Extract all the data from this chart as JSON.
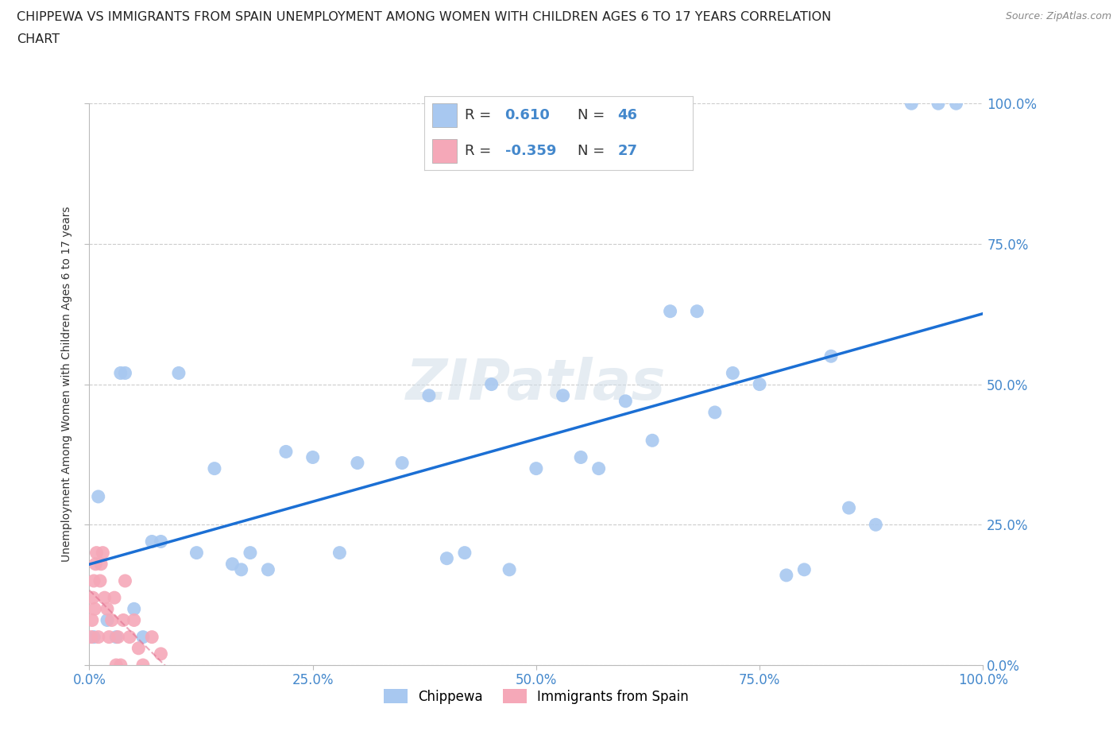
{
  "title_line1": "CHIPPEWA VS IMMIGRANTS FROM SPAIN UNEMPLOYMENT AMONG WOMEN WITH CHILDREN AGES 6 TO 17 YEARS CORRELATION",
  "title_line2": "CHART",
  "source": "Source: ZipAtlas.com",
  "ylabel": "Unemployment Among Women with Children Ages 6 to 17 years",
  "watermark": "ZIPatlas",
  "chippewa_R": 0.61,
  "chippewa_N": 46,
  "spain_R": -0.359,
  "spain_N": 27,
  "chippewa_color": "#a8c8f0",
  "chippewa_line_color": "#1b6fd4",
  "spain_color": "#f5a8b8",
  "spain_line_color": "#e07090",
  "background_color": "#ffffff",
  "grid_color": "#cccccc",
  "tick_color": "#4488cc",
  "chippewa_x": [
    0.5,
    1.0,
    2.0,
    3.0,
    3.5,
    4.0,
    5.0,
    6.0,
    7.0,
    8.0,
    10.0,
    12.0,
    14.0,
    16.0,
    17.0,
    18.0,
    20.0,
    22.0,
    25.0,
    28.0,
    30.0,
    35.0,
    38.0,
    40.0,
    42.0,
    45.0,
    47.0,
    50.0,
    53.0,
    55.0,
    57.0,
    60.0,
    63.0,
    65.0,
    68.0,
    70.0,
    72.0,
    75.0,
    78.0,
    80.0,
    83.0,
    85.0,
    88.0,
    92.0,
    95.0,
    97.0
  ],
  "chippewa_y": [
    5.0,
    30.0,
    8.0,
    5.0,
    52.0,
    52.0,
    10.0,
    5.0,
    22.0,
    22.0,
    52.0,
    20.0,
    35.0,
    18.0,
    17.0,
    20.0,
    17.0,
    38.0,
    37.0,
    20.0,
    36.0,
    36.0,
    48.0,
    19.0,
    20.0,
    50.0,
    17.0,
    35.0,
    48.0,
    37.0,
    35.0,
    47.0,
    40.0,
    63.0,
    63.0,
    45.0,
    52.0,
    50.0,
    16.0,
    17.0,
    55.0,
    28.0,
    25.0,
    100.0,
    100.0,
    100.0
  ],
  "spain_x": [
    0.2,
    0.3,
    0.4,
    0.5,
    0.6,
    0.7,
    0.8,
    1.0,
    1.2,
    1.3,
    1.5,
    1.7,
    2.0,
    2.2,
    2.5,
    2.8,
    3.0,
    3.2,
    3.5,
    3.8,
    4.0,
    4.5,
    5.0,
    5.5,
    6.0,
    7.0,
    8.0
  ],
  "spain_y": [
    5.0,
    8.0,
    12.0,
    15.0,
    10.0,
    18.0,
    20.0,
    5.0,
    15.0,
    18.0,
    20.0,
    12.0,
    10.0,
    5.0,
    8.0,
    12.0,
    0.0,
    5.0,
    0.0,
    8.0,
    15.0,
    5.0,
    8.0,
    3.0,
    0.0,
    5.0,
    2.0
  ],
  "xlim": [
    0,
    100
  ],
  "ylim": [
    0,
    100
  ],
  "xticks": [
    0,
    25,
    50,
    75,
    100
  ],
  "yticks": [
    0,
    25,
    50,
    75,
    100
  ],
  "xticklabels": [
    "0.0%",
    "25.0%",
    "50.0%",
    "75.0%",
    "100.0%"
  ],
  "yticklabels": [
    "0.0%",
    "25.0%",
    "50.0%",
    "75.0%",
    "100.0%"
  ]
}
